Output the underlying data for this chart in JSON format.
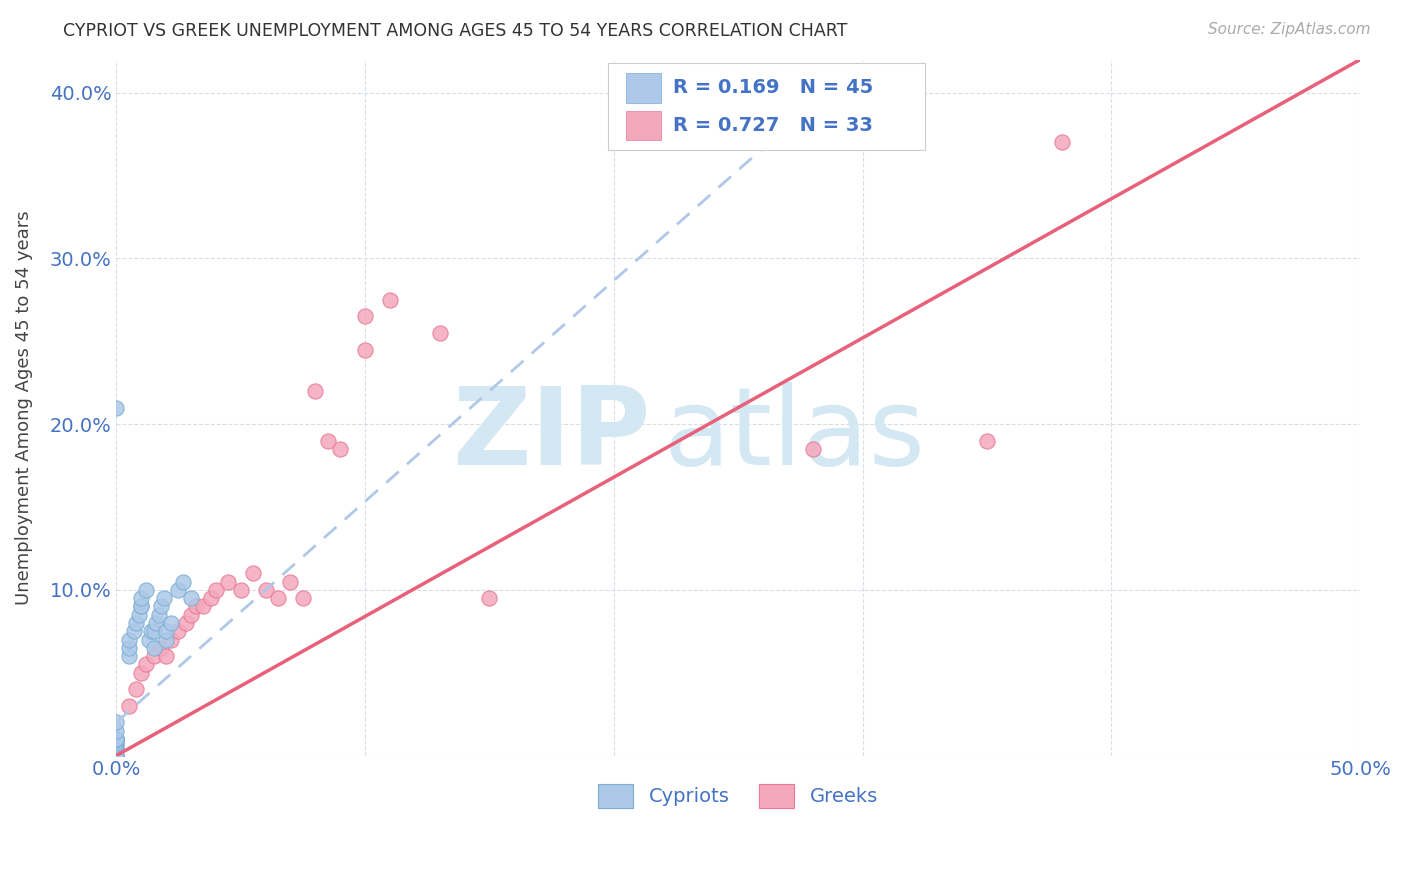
{
  "title": "CYPRIOT VS GREEK UNEMPLOYMENT AMONG AGES 45 TO 54 YEARS CORRELATION CHART",
  "source": "Source: ZipAtlas.com",
  "ylabel": "Unemployment Among Ages 45 to 54 years",
  "xlim": [
    0,
    0.5
  ],
  "ylim": [
    0,
    0.42
  ],
  "xticks": [
    0.0,
    0.1,
    0.2,
    0.3,
    0.4,
    0.5
  ],
  "yticks": [
    0.0,
    0.1,
    0.2,
    0.3,
    0.4
  ],
  "cypriot_color": "#adc8e8",
  "greek_color": "#f4a8bc",
  "cypriot_edge_color": "#7aafd4",
  "greek_edge_color": "#e87898",
  "cypriot_line_color": "#b0c8e8",
  "greek_line_color": "#e8607a",
  "r_cypriot": 0.169,
  "n_cypriot": 45,
  "r_greek": 0.727,
  "n_greek": 33,
  "legend_text_color": "#4472c4",
  "tick_color": "#4472c4",
  "grid_color": "#d8dde8",
  "watermark_zip": "ZIP",
  "watermark_atlas": "atlas",
  "watermark_color": "#d4e8f4",
  "cypriot_scatter_x": [
    0.0,
    0.0,
    0.0,
    0.0,
    0.0,
    0.0,
    0.0,
    0.0,
    0.0,
    0.0,
    0.0,
    0.0,
    0.0,
    0.0,
    0.0,
    0.0,
    0.0,
    0.0,
    0.0,
    0.0,
    0.005,
    0.005,
    0.005,
    0.007,
    0.008,
    0.009,
    0.01,
    0.01,
    0.01,
    0.012,
    0.013,
    0.014,
    0.015,
    0.015,
    0.016,
    0.017,
    0.018,
    0.019,
    0.02,
    0.02,
    0.022,
    0.025,
    0.027,
    0.03,
    0.0
  ],
  "cypriot_scatter_y": [
    0.0,
    0.0,
    0.0,
    0.0,
    0.0,
    0.0,
    0.005,
    0.005,
    0.007,
    0.008,
    0.01,
    0.01,
    0.01,
    0.01,
    0.01,
    0.01,
    0.01,
    0.01,
    0.015,
    0.02,
    0.06,
    0.065,
    0.07,
    0.075,
    0.08,
    0.085,
    0.09,
    0.09,
    0.095,
    0.1,
    0.07,
    0.075,
    0.065,
    0.075,
    0.08,
    0.085,
    0.09,
    0.095,
    0.07,
    0.075,
    0.08,
    0.1,
    0.105,
    0.095,
    0.21
  ],
  "greek_scatter_x": [
    0.005,
    0.008,
    0.01,
    0.012,
    0.015,
    0.018,
    0.02,
    0.022,
    0.025,
    0.028,
    0.03,
    0.032,
    0.035,
    0.038,
    0.04,
    0.045,
    0.05,
    0.055,
    0.06,
    0.065,
    0.07,
    0.075,
    0.08,
    0.085,
    0.09,
    0.1,
    0.1,
    0.11,
    0.13,
    0.15,
    0.28,
    0.35,
    0.38
  ],
  "greek_scatter_y": [
    0.03,
    0.04,
    0.05,
    0.055,
    0.06,
    0.065,
    0.06,
    0.07,
    0.075,
    0.08,
    0.085,
    0.09,
    0.09,
    0.095,
    0.1,
    0.105,
    0.1,
    0.11,
    0.1,
    0.095,
    0.105,
    0.095,
    0.22,
    0.19,
    0.185,
    0.245,
    0.265,
    0.275,
    0.255,
    0.095,
    0.185,
    0.19,
    0.37
  ],
  "bg_color": "#ffffff",
  "marker_size": 120,
  "cypriot_line_x": [
    0.0,
    0.5
  ],
  "cypriot_line_y_start": 0.02,
  "cypriot_line_y_end": 0.42,
  "greek_line_x": [
    0.0,
    0.5
  ],
  "greek_line_y_start": 0.0,
  "greek_line_y_end": 0.42
}
